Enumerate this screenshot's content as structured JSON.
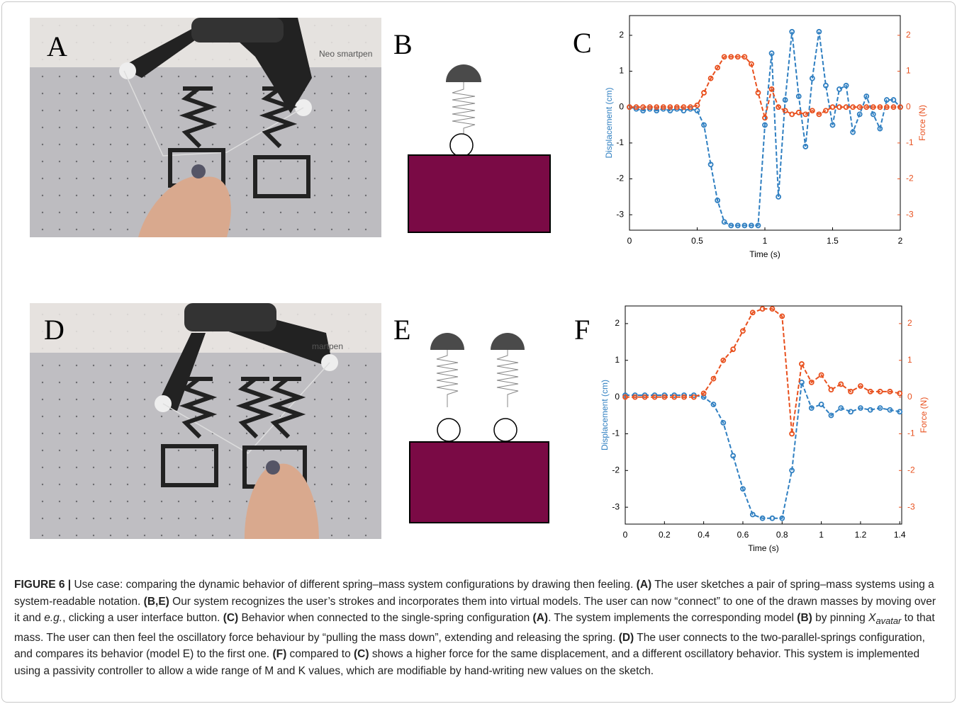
{
  "panels": [
    "A",
    "B",
    "C",
    "D",
    "E",
    "F"
  ],
  "photo_text": [
    "Neo smartpen",
    "martpen"
  ],
  "chart_data": [
    {
      "type": "line",
      "xlabel": "Time (s)",
      "ylabel": "Displacement (cm)",
      "y2label": "Force (N)",
      "x": [
        0,
        0.05,
        0.1,
        0.15,
        0.2,
        0.25,
        0.3,
        0.35,
        0.4,
        0.45,
        0.5,
        0.55,
        0.6,
        0.65,
        0.7,
        0.75,
        0.8,
        0.85,
        0.9,
        0.95,
        1.0,
        1.05,
        1.1,
        1.15,
        1.2,
        1.25,
        1.3,
        1.35,
        1.4,
        1.45,
        1.5,
        1.55,
        1.6,
        1.65,
        1.7,
        1.75,
        1.8,
        1.85,
        1.9,
        1.95,
        2.0
      ],
      "series": [
        {
          "color": "#2f7fc1",
          "values": [
            0,
            -0.05,
            -0.1,
            -0.05,
            -0.1,
            -0.05,
            -0.1,
            -0.05,
            -0.1,
            -0.05,
            -0.1,
            -0.5,
            -1.6,
            -2.6,
            -3.2,
            -3.3,
            -3.3,
            -3.3,
            -3.3,
            -3.3,
            -0.5,
            1.5,
            -2.5,
            0.2,
            2.1,
            0.3,
            -1.1,
            0.8,
            2.1,
            0.6,
            -0.5,
            0.5,
            0.6,
            -0.7,
            -0.2,
            0.3,
            -0.2,
            -0.6,
            0.2,
            0.2,
            0
          ]
        },
        {
          "color": "#e8501e",
          "axis": "y2",
          "values": [
            0,
            0,
            0,
            0,
            0,
            0,
            0,
            0,
            0,
            0,
            0.05,
            0.4,
            0.8,
            1.1,
            1.4,
            1.4,
            1.4,
            1.4,
            1.2,
            0.4,
            -0.3,
            0.5,
            0,
            -0.1,
            -0.2,
            -0.15,
            -0.2,
            -0.1,
            -0.2,
            -0.1,
            0,
            0,
            0,
            0,
            0,
            0,
            0,
            0,
            0,
            0,
            0
          ]
        }
      ],
      "xlim": [
        0,
        2
      ],
      "xticks": [
        0,
        0.5,
        1,
        1.5,
        2
      ],
      "ylim": [
        -3.43,
        2.55
      ],
      "yticks": [
        -3,
        -2,
        -1,
        0,
        1,
        2
      ],
      "y2lim": [
        -3.43,
        2.55
      ],
      "y2ticks": [
        -3,
        -2,
        -1,
        0,
        1,
        2
      ]
    },
    {
      "type": "line",
      "xlabel": "Time (s)",
      "ylabel": "Displacement (cm)",
      "y2label": "Force (N)",
      "x": [
        0,
        0.05,
        0.1,
        0.15,
        0.2,
        0.25,
        0.3,
        0.35,
        0.4,
        0.45,
        0.5,
        0.55,
        0.6,
        0.65,
        0.7,
        0.75,
        0.8,
        0.85,
        0.9,
        0.95,
        1.0,
        1.05,
        1.1,
        1.15,
        1.2,
        1.25,
        1.3,
        1.35,
        1.4
      ],
      "series": [
        {
          "color": "#2f7fc1",
          "values": [
            0.05,
            0.05,
            0.05,
            0.05,
            0.05,
            0.05,
            0.05,
            0.05,
            0,
            -0.2,
            -0.7,
            -1.6,
            -2.5,
            -3.2,
            -3.3,
            -3.3,
            -3.3,
            -2.0,
            0.4,
            -0.3,
            -0.2,
            -0.5,
            -0.3,
            -0.4,
            -0.3,
            -0.35,
            -0.3,
            -0.35,
            -0.4
          ]
        },
        {
          "color": "#e8501e",
          "axis": "y2",
          "values": [
            0,
            0,
            0,
            0,
            0,
            0,
            0,
            0,
            0.1,
            0.5,
            1.0,
            1.3,
            1.8,
            2.3,
            2.4,
            2.4,
            2.2,
            -1.0,
            0.9,
            0.4,
            0.6,
            0.2,
            0.35,
            0.15,
            0.3,
            0.15,
            0.15,
            0.15,
            0.1
          ]
        }
      ],
      "xlim": [
        0,
        1.41
      ],
      "xticks": [
        0,
        0.2,
        0.4,
        0.6,
        0.8,
        1,
        1.2,
        1.4
      ],
      "ylim": [
        -3.46,
        2.48
      ],
      "yticks": [
        -3,
        -2,
        -1,
        0,
        1,
        2
      ],
      "y2lim": [
        -3.46,
        2.48
      ],
      "y2ticks": [
        -3,
        -2,
        -1,
        0,
        1,
        2
      ]
    }
  ],
  "caption": {
    "segments": [
      {
        "text": "FIGURE 6 | ",
        "style": "b"
      },
      {
        "text": "Use case: comparing the dynamic behavior of different spring–mass system configurations by drawing then feeling. "
      },
      {
        "text": "(A)",
        "style": "b"
      },
      {
        "text": " The user sketches a pair of spring–mass systems using a system-readable notation. "
      },
      {
        "text": "(B,E)",
        "style": "b"
      },
      {
        "text": " Our system recognizes the user’s strokes and incorporates them into virtual models. The user can now “connect” to one of the drawn masses by moving over it and "
      },
      {
        "text": "e.g.",
        "style": "i"
      },
      {
        "text": ", clicking a user interface button. "
      },
      {
        "text": "(C)",
        "style": "b"
      },
      {
        "text": " Behavior when connected to the single-spring configuration "
      },
      {
        "text": "(A)",
        "style": "b"
      },
      {
        "text": ". The system implements the corresponding model "
      },
      {
        "text": "(B)",
        "style": "b"
      },
      {
        "text": " by pinning "
      },
      {
        "text": "X",
        "style": "i"
      },
      {
        "text": "avatar",
        "style": "sub"
      },
      {
        "text": " to that mass. The user can then feel the oscillatory force behaviour by “pulling the mass down”, extending and releasing the spring. "
      },
      {
        "text": "(D)",
        "style": "b"
      },
      {
        "text": " The user connects to the two-parallel-springs configuration, and compares its behavior (model E) to the first one. "
      },
      {
        "text": "(F)",
        "style": "b"
      },
      {
        "text": " compared to "
      },
      {
        "text": "(C)",
        "style": "b"
      },
      {
        "text": " shows a higher force for the same displacement, and a different oscillatory behavior. This system is implemented using a passivity controller to allow a wide range of M and K values, which are modifiable by hand-writing new values on the sketch."
      }
    ]
  }
}
